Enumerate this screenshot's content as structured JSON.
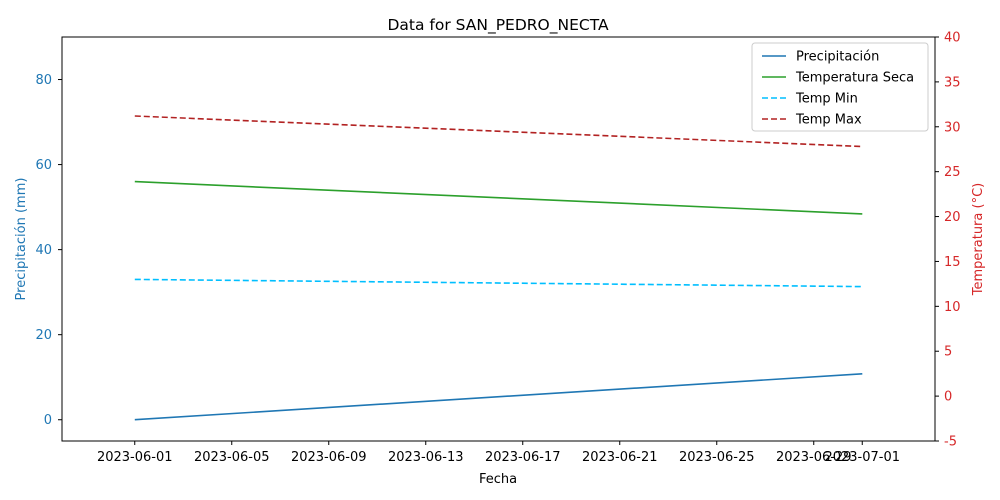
{
  "chart_data": {
    "type": "line",
    "title": "Data for SAN_PEDRO_NECTA",
    "xlabel": "Fecha",
    "ylabel_left": "Precipitación (mm)",
    "ylabel_right": "Temperatura (°C)",
    "x_range": [
      "2023-05-29",
      "2023-07-04"
    ],
    "y_left_range": [
      -5,
      90
    ],
    "y_right_range": [
      -5,
      40
    ],
    "x_ticks": [
      "2023-06-01",
      "2023-06-05",
      "2023-06-09",
      "2023-06-13",
      "2023-06-17",
      "2023-06-21",
      "2023-06-25",
      "2023-06-29",
      "2023-07-01"
    ],
    "y_left_ticks": [
      0,
      20,
      40,
      60,
      80
    ],
    "y_right_ticks": [
      -5,
      0,
      5,
      10,
      15,
      20,
      25,
      30,
      35,
      40
    ],
    "legend_position": "top-right",
    "grid": false,
    "series": [
      {
        "name": "Precipitación",
        "axis": "left",
        "color": "#1f77b4",
        "dash": "solid",
        "points": [
          [
            "2023-06-01",
            0.0
          ],
          [
            "2023-07-01",
            10.8
          ]
        ]
      },
      {
        "name": "Temperatura Seca",
        "axis": "left",
        "color": "#2ca02c",
        "dash": "solid",
        "points": [
          [
            "2023-06-01",
            56.0
          ],
          [
            "2023-07-01",
            48.4
          ]
        ]
      },
      {
        "name": "Temp Min",
        "axis": "right",
        "color": "#00bfff",
        "dash": "dashed",
        "points": [
          [
            "2023-06-01",
            13.0
          ],
          [
            "2023-07-01",
            12.2
          ]
        ]
      },
      {
        "name": "Temp Max",
        "axis": "right",
        "color": "#b22222",
        "dash": "dashed",
        "points": [
          [
            "2023-06-01",
            31.2
          ],
          [
            "2023-07-01",
            27.8
          ]
        ]
      }
    ],
    "colors": {
      "left_axis": "#1f77b4",
      "right_axis": "#d62728",
      "frame": "#000000"
    }
  }
}
